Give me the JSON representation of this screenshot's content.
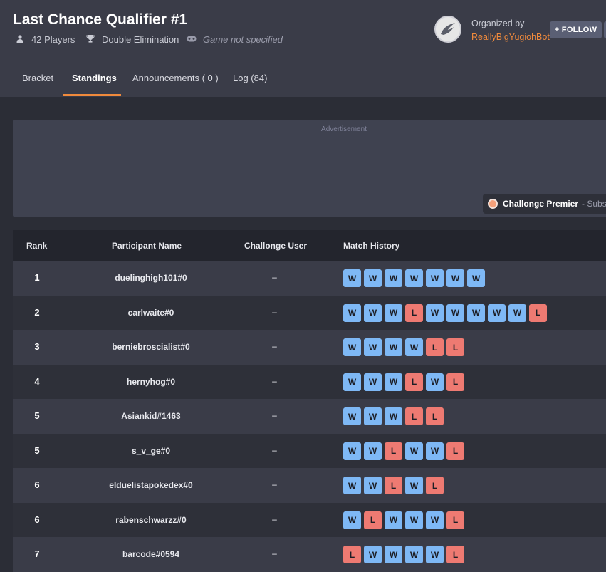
{
  "tournament": {
    "title": "Last Chance Qualifier #1",
    "players": "42 Players",
    "format": "Double Elimination",
    "game": "Game not specified"
  },
  "organizer": {
    "label": "Organized by",
    "name": "ReallyBigYugiohBot",
    "follow_label": "+ FOLLOW"
  },
  "tabs": [
    {
      "label": "Bracket"
    },
    {
      "label": "Standings",
      "active": true
    },
    {
      "label": "Announcements ( 0 )"
    },
    {
      "label": "Log (84)"
    }
  ],
  "advertisement": {
    "label": "Advertisement",
    "premier_name": "Challonge Premier",
    "premier_sub": "- Subsc"
  },
  "standings": {
    "columns": [
      "Rank",
      "Participant Name",
      "Challonge User",
      "Match History"
    ],
    "rows": [
      {
        "rank": "1",
        "name": "duelinghigh101#0",
        "user": "–",
        "history": [
          "W",
          "W",
          "W",
          "W",
          "W",
          "W",
          "W"
        ]
      },
      {
        "rank": "2",
        "name": "carlwaite#0",
        "user": "–",
        "history": [
          "W",
          "W",
          "W",
          "L",
          "W",
          "W",
          "W",
          "W",
          "W",
          "L"
        ]
      },
      {
        "rank": "3",
        "name": "berniebroscialist#0",
        "user": "–",
        "history": [
          "W",
          "W",
          "W",
          "W",
          "L",
          "L"
        ]
      },
      {
        "rank": "4",
        "name": "hernyhog#0",
        "user": "–",
        "history": [
          "W",
          "W",
          "W",
          "L",
          "W",
          "L"
        ]
      },
      {
        "rank": "5",
        "name": "Asiankid#1463",
        "user": "–",
        "history": [
          "W",
          "W",
          "W",
          "L",
          "L"
        ]
      },
      {
        "rank": "5",
        "name": "s_v_ge#0",
        "user": "–",
        "history": [
          "W",
          "W",
          "L",
          "W",
          "W",
          "L"
        ]
      },
      {
        "rank": "6",
        "name": "elduelistapokedex#0",
        "user": "–",
        "history": [
          "W",
          "W",
          "L",
          "W",
          "L"
        ]
      },
      {
        "rank": "6",
        "name": "rabenschwarzz#0",
        "user": "–",
        "history": [
          "W",
          "L",
          "W",
          "W",
          "W",
          "L"
        ]
      },
      {
        "rank": "7",
        "name": "barcode#0594",
        "user": "–",
        "history": [
          "L",
          "W",
          "W",
          "W",
          "W",
          "L"
        ]
      }
    ]
  },
  "colors": {
    "accent": "#f08a3c",
    "win": "#7eb8f5",
    "loss": "#ee7a72"
  }
}
